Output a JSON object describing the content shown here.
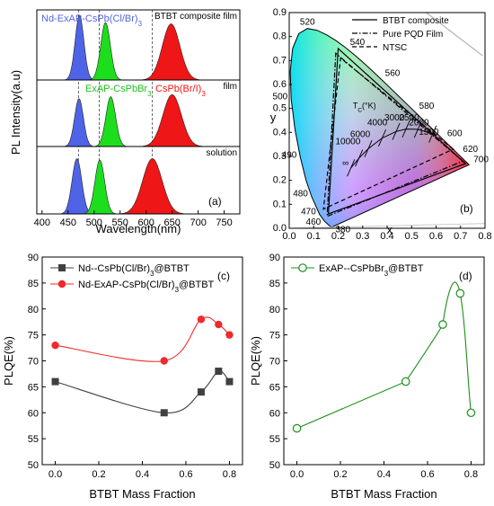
{
  "chart_data": [
    {
      "type": "area",
      "panel_label": "(a)",
      "xlabel": "Wavelength(nm)",
      "ylabel": "PL Intensity(a.u)",
      "xlim": [
        390,
        780
      ],
      "xticks": [
        400,
        450,
        500,
        550,
        600,
        650,
        700,
        750
      ],
      "reference_lines": [
        470,
        510,
        612
      ],
      "colors": {
        "blue": "#4f63e6",
        "green": "#1dde1d",
        "red": "#ee1616"
      },
      "subpanels": [
        {
          "label": "BTBT composite film",
          "annotations": [
            {
              "text": "Nd-ExAP-CsPb(Cl/Br)",
              "sub": "3",
              "color": "#5566dd"
            }
          ],
          "peaks": [
            {
              "name": "blue",
              "center": 472,
              "fwhm": 20,
              "height": 0.92
            },
            {
              "name": "green",
              "center": 522,
              "fwhm": 22,
              "height": 0.82
            },
            {
              "name": "red",
              "center": 648,
              "fwhm": 40,
              "height": 0.8
            }
          ]
        },
        {
          "label": "film",
          "annotations": [
            {
              "text": "ExAP-CsPbBr",
              "sub": "3",
              "color": "#1cc21c"
            },
            {
              "text": "CsPb(Br/I)",
              "sub": "3",
              "color": "#ee1616"
            }
          ],
          "peaks": [
            {
              "name": "blue",
              "center": 471,
              "fwhm": 20,
              "height": 0.72
            },
            {
              "name": "green",
              "center": 532,
              "fwhm": 22,
              "height": 0.75
            },
            {
              "name": "red",
              "center": 650,
              "fwhm": 42,
              "height": 0.78
            }
          ]
        },
        {
          "label": "solution",
          "annotations": [],
          "peaks": [
            {
              "name": "blue",
              "center": 467,
              "fwhm": 22,
              "height": 0.82
            },
            {
              "name": "green",
              "center": 511,
              "fwhm": 22,
              "height": 0.8
            },
            {
              "name": "red",
              "center": 612,
              "fwhm": 44,
              "height": 0.82
            }
          ]
        }
      ]
    },
    {
      "type": "scatter",
      "panel_label": "(b)",
      "xlabel": "x",
      "ylabel": "y",
      "xlim": [
        0.0,
        0.8
      ],
      "ylim": [
        0.0,
        0.9
      ],
      "xticks": [
        0.0,
        0.1,
        0.2,
        0.3,
        0.4,
        0.5,
        0.6,
        0.7,
        0.8
      ],
      "yticks": [
        0.0,
        0.1,
        0.2,
        0.3,
        0.4,
        0.5,
        0.6,
        0.7,
        0.8,
        0.9
      ],
      "legend": [
        "BTBT composite",
        "Pure PQD Film",
        "NTSC"
      ],
      "legend_position": "top-right",
      "spectral_locus_labels": [
        {
          "text": "380",
          "x": 0.1741,
          "y": 0.005
        },
        {
          "text": "460",
          "x": 0.144,
          "y": 0.0297
        },
        {
          "text": "470",
          "x": 0.1241,
          "y": 0.0578
        },
        {
          "text": "480",
          "x": 0.0913,
          "y": 0.1327
        },
        {
          "text": "490",
          "x": 0.0454,
          "y": 0.295
        },
        {
          "text": "500",
          "x": 0.0082,
          "y": 0.5384
        },
        {
          "text": "520",
          "x": 0.0743,
          "y": 0.8338
        },
        {
          "text": "540",
          "x": 0.2296,
          "y": 0.7543
        },
        {
          "text": "560",
          "x": 0.3731,
          "y": 0.6245
        },
        {
          "text": "580",
          "x": 0.5125,
          "y": 0.4866
        },
        {
          "text": "600",
          "x": 0.627,
          "y": 0.3725
        },
        {
          "text": "620",
          "x": 0.6915,
          "y": 0.3083
        },
        {
          "text": "700",
          "x": 0.7347,
          "y": 0.2653
        }
      ],
      "triangles": [
        {
          "name": "BTBT composite",
          "points": [
            [
              0.72,
              0.27
            ],
            [
              0.2,
              0.75
            ],
            [
              0.16,
              0.06
            ]
          ]
        },
        {
          "name": "Pure PQD Film",
          "points": [
            [
              0.71,
              0.28
            ],
            [
              0.19,
              0.73
            ],
            [
              0.155,
              0.05
            ]
          ]
        },
        {
          "name": "NTSC",
          "points": [
            [
              0.67,
              0.33
            ],
            [
              0.21,
              0.71
            ],
            [
              0.14,
              0.08
            ]
          ]
        }
      ],
      "planckian_label": "T",
      "planckian_label_sub": "C",
      "planckian_label_unit": "(°K)",
      "cct_labels": [
        "10000",
        "6000",
        "4000",
        "3000",
        "2500",
        "2000",
        "1500",
        "∞"
      ]
    },
    {
      "type": "line",
      "panel_label": "(c)",
      "xlabel": "BTBT Mass Fraction",
      "ylabel": "PLQE(%)",
      "xlim": [
        -0.06,
        0.86
      ],
      "ylim": [
        50,
        90
      ],
      "xticks": [
        0.0,
        0.2,
        0.4,
        0.6,
        0.8
      ],
      "yticks": [
        50,
        55,
        60,
        65,
        70,
        75,
        80,
        85,
        90
      ],
      "series": [
        {
          "name": "Nd--CsPb(Cl/Br)",
          "name_sub": "3",
          "name_suffix": "@BTBT",
          "color": "#404040",
          "marker": "square",
          "x": [
            0.0,
            0.5,
            0.67,
            0.75,
            0.8
          ],
          "values": [
            66,
            60,
            64,
            68,
            66
          ]
        },
        {
          "name": "Nd-ExAP-CsPb(Cl/Br)",
          "name_sub": "3",
          "name_suffix": "@BTBT",
          "color": "#ee2a2a",
          "marker": "circle",
          "x": [
            0.0,
            0.5,
            0.67,
            0.75,
            0.8
          ],
          "values": [
            73,
            70,
            78,
            77,
            75
          ]
        }
      ]
    },
    {
      "type": "line",
      "panel_label": "(d)",
      "xlabel": "BTBT Mass Fraction",
      "ylabel": "PLQE(%)",
      "xlim": [
        -0.06,
        0.86
      ],
      "ylim": [
        50,
        90
      ],
      "xticks": [
        0.0,
        0.2,
        0.4,
        0.6,
        0.8
      ],
      "yticks": [
        50,
        55,
        60,
        65,
        70,
        75,
        80,
        85,
        90
      ],
      "series": [
        {
          "name": "ExAP--CsPbBr",
          "name_sub": "3",
          "name_suffix": "@BTBT",
          "color": "#1a8f1a",
          "marker": "circle-open",
          "x": [
            0.0,
            0.5,
            0.67,
            0.75,
            0.8
          ],
          "values": [
            57,
            66,
            77,
            83,
            60
          ]
        }
      ]
    }
  ]
}
